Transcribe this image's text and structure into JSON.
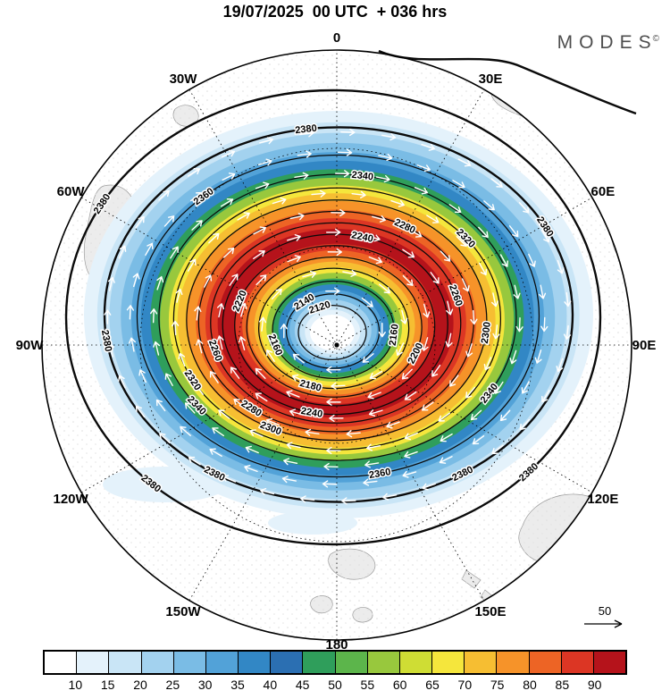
{
  "header": {
    "title": "19/07/2025  00 UTC  + 036 hrs",
    "logo_text": "MODES",
    "logo_mark": "©"
  },
  "map": {
    "longitude_labels": [
      "0",
      "30E",
      "60E",
      "90E",
      "120E",
      "150E",
      "180",
      "150W",
      "120W",
      "90W",
      "60W",
      "30W"
    ],
    "reference_arrow_label": "50"
  },
  "chart_data": {
    "type": "heatmap",
    "title": "19/07/2025 00 UTC + 036 hrs",
    "projection": "polar stereographic, 0 longitude at top, 180 at bottom, pole at center",
    "contour_levels": [
      2120,
      2140,
      2160,
      2180,
      2200,
      2220,
      2240,
      2260,
      2280,
      2300,
      2320,
      2340,
      2360,
      2380
    ],
    "contour_interval": 20,
    "shading_boundaries": [
      10,
      15,
      20,
      25,
      30,
      35,
      40,
      45,
      50,
      55,
      60,
      65,
      70,
      75,
      80,
      85,
      90
    ],
    "shading_colors": [
      "#FFFFFF",
      "#E4F2FB",
      "#C9E5F6",
      "#A3D2EF",
      "#7ABCE5",
      "#52A2D8",
      "#3287C5",
      "#2B6FB2",
      "#2F9E5B",
      "#5CB54B",
      "#98C83D",
      "#CFDD34",
      "#F5E63C",
      "#F6BE32",
      "#F69329",
      "#ED6425",
      "#DC3624",
      "#B5131B"
    ],
    "legend_position": "bottom",
    "reference_vector": 50,
    "annotations": {
      "center_minimum_contour": 2120,
      "outer_maximum_contour": 2380,
      "flow_direction": "clockwise (white wind arrows)"
    }
  }
}
